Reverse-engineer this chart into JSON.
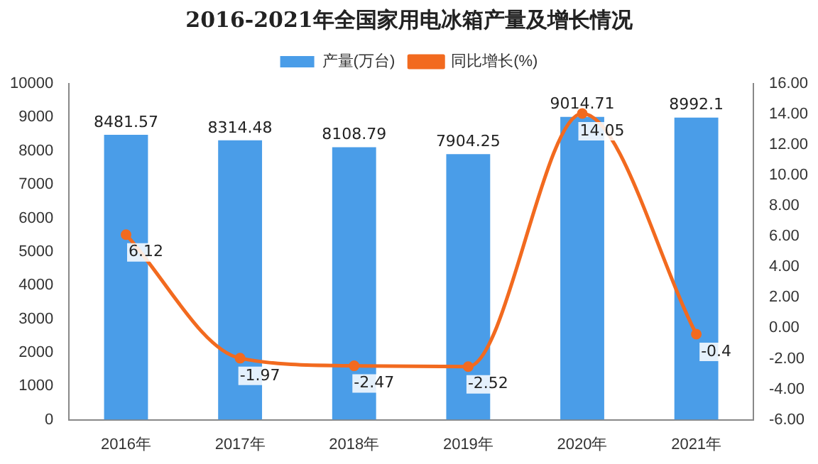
{
  "chart_data": {
    "type": "bar",
    "title": "2016-2021年全国家用电冰箱产量及增长情况",
    "categories": [
      "2016年",
      "2017年",
      "2018年",
      "2019年",
      "2020年",
      "2021年"
    ],
    "series": [
      {
        "name": "产量(万台)",
        "color": "#4a9de8",
        "values": [
          8481.57,
          8314.48,
          8108.79,
          7904.25,
          9014.71,
          8992.1
        ],
        "value_labels": [
          "8481.57",
          "8314.48",
          "8108.79",
          "7904.25",
          "9014.71",
          "8992.1"
        ]
      },
      {
        "name": "同比增长(%)",
        "type": "line",
        "axis": "y2",
        "color": "#f26a1f",
        "values": [
          6.12,
          -1.97,
          -2.47,
          -2.52,
          14.05,
          -0.4
        ],
        "value_labels": [
          "6.12",
          "-1.97",
          "-2.47",
          "-2.52",
          "14.05",
          "-0.4"
        ]
      }
    ],
    "ylim": [
      0,
      10000
    ],
    "yticks": [
      0,
      1000,
      2000,
      3000,
      4000,
      5000,
      6000,
      7000,
      8000,
      9000,
      10000
    ],
    "y2lim": [
      -6,
      16
    ],
    "y2ticks": [
      {
        "value": -6,
        "label": "-6.00"
      },
      {
        "value": -4,
        "label": "-4.00"
      },
      {
        "value": -2,
        "label": "-2.00"
      },
      {
        "value": 0,
        "label": "0.00"
      },
      {
        "value": 2,
        "label": "2.00"
      },
      {
        "value": 4,
        "label": "4.00"
      },
      {
        "value": 6,
        "label": "6.00"
      },
      {
        "value": 8,
        "label": "8.00"
      },
      {
        "value": 10,
        "label": "10.00"
      },
      {
        "value": 12,
        "label": "12.00"
      },
      {
        "value": 14,
        "label": "14.00"
      },
      {
        "value": 16,
        "label": "16.00"
      }
    ],
    "legend": "top",
    "grid": false,
    "marker": "circle",
    "line_style": "solid"
  }
}
